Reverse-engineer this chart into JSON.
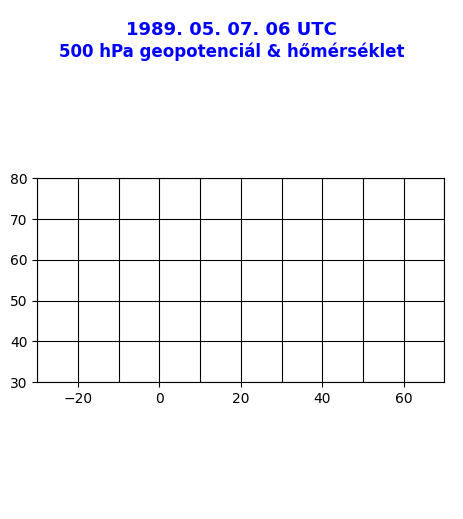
{
  "title_line1": "1989. 05. 07. 06 UTC",
  "title_line2": "500 hPa geopotenciál & hőmérséklet",
  "title_color": "#0000ff",
  "title_fontsize": 13,
  "background_color": "#ffffff",
  "blue_lw": 2.0,
  "red_lw": 2.0,
  "coast_color": "#5c0a0a",
  "coast_lw": 1.2,
  "blue_color": "#0000ff",
  "red_color": "#ff0000",
  "orange_color": "#ff8c00",
  "pink_fill": "#ffaacc",
  "pink_hatch_color": "#dd88bb",
  "projection_central_lon": 10,
  "projection_central_lat": 55,
  "extent_lon_min": -30,
  "extent_lon_max": 70,
  "extent_lat_min": 30,
  "extent_lat_max": 80
}
